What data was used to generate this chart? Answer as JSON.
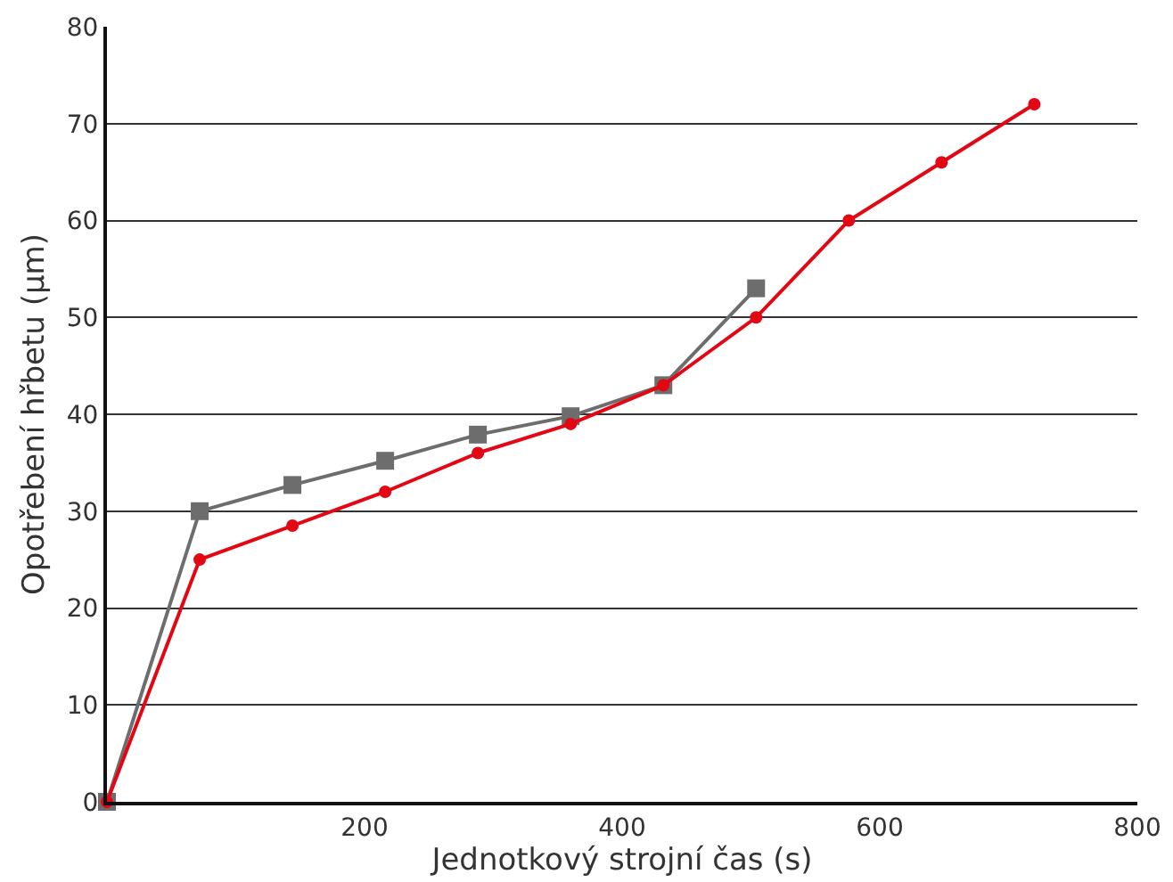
{
  "chart_data": {
    "type": "line",
    "xlabel": "Jednotkový strojní čas (s)",
    "ylabel": "Opotřebení hřbetu (µm)",
    "series": [
      {
        "color": "#e30613",
        "marker": "circle",
        "x": [
          0,
          72,
          144,
          216,
          288,
          360,
          432,
          504,
          576,
          648,
          720
        ],
        "values": [
          0,
          25,
          28.5,
          32,
          36,
          39,
          43,
          50,
          60,
          66,
          72
        ]
      },
      {
        "color": "#6d6d6d",
        "marker": "square",
        "x": [
          0,
          72,
          144,
          216,
          288,
          360,
          432,
          504
        ],
        "values": [
          0,
          30,
          32.7,
          35.2,
          37.9,
          39.8,
          43,
          53
        ]
      }
    ],
    "xlim": [
      0,
      800
    ],
    "xticks": [
      200,
      400,
      600,
      800
    ],
    "ylim": [
      0,
      80
    ],
    "yticks": [
      0,
      10,
      20,
      30,
      40,
      50,
      60,
      70,
      80
    ],
    "grid": "y",
    "legend": false,
    "line_style": "solid"
  }
}
